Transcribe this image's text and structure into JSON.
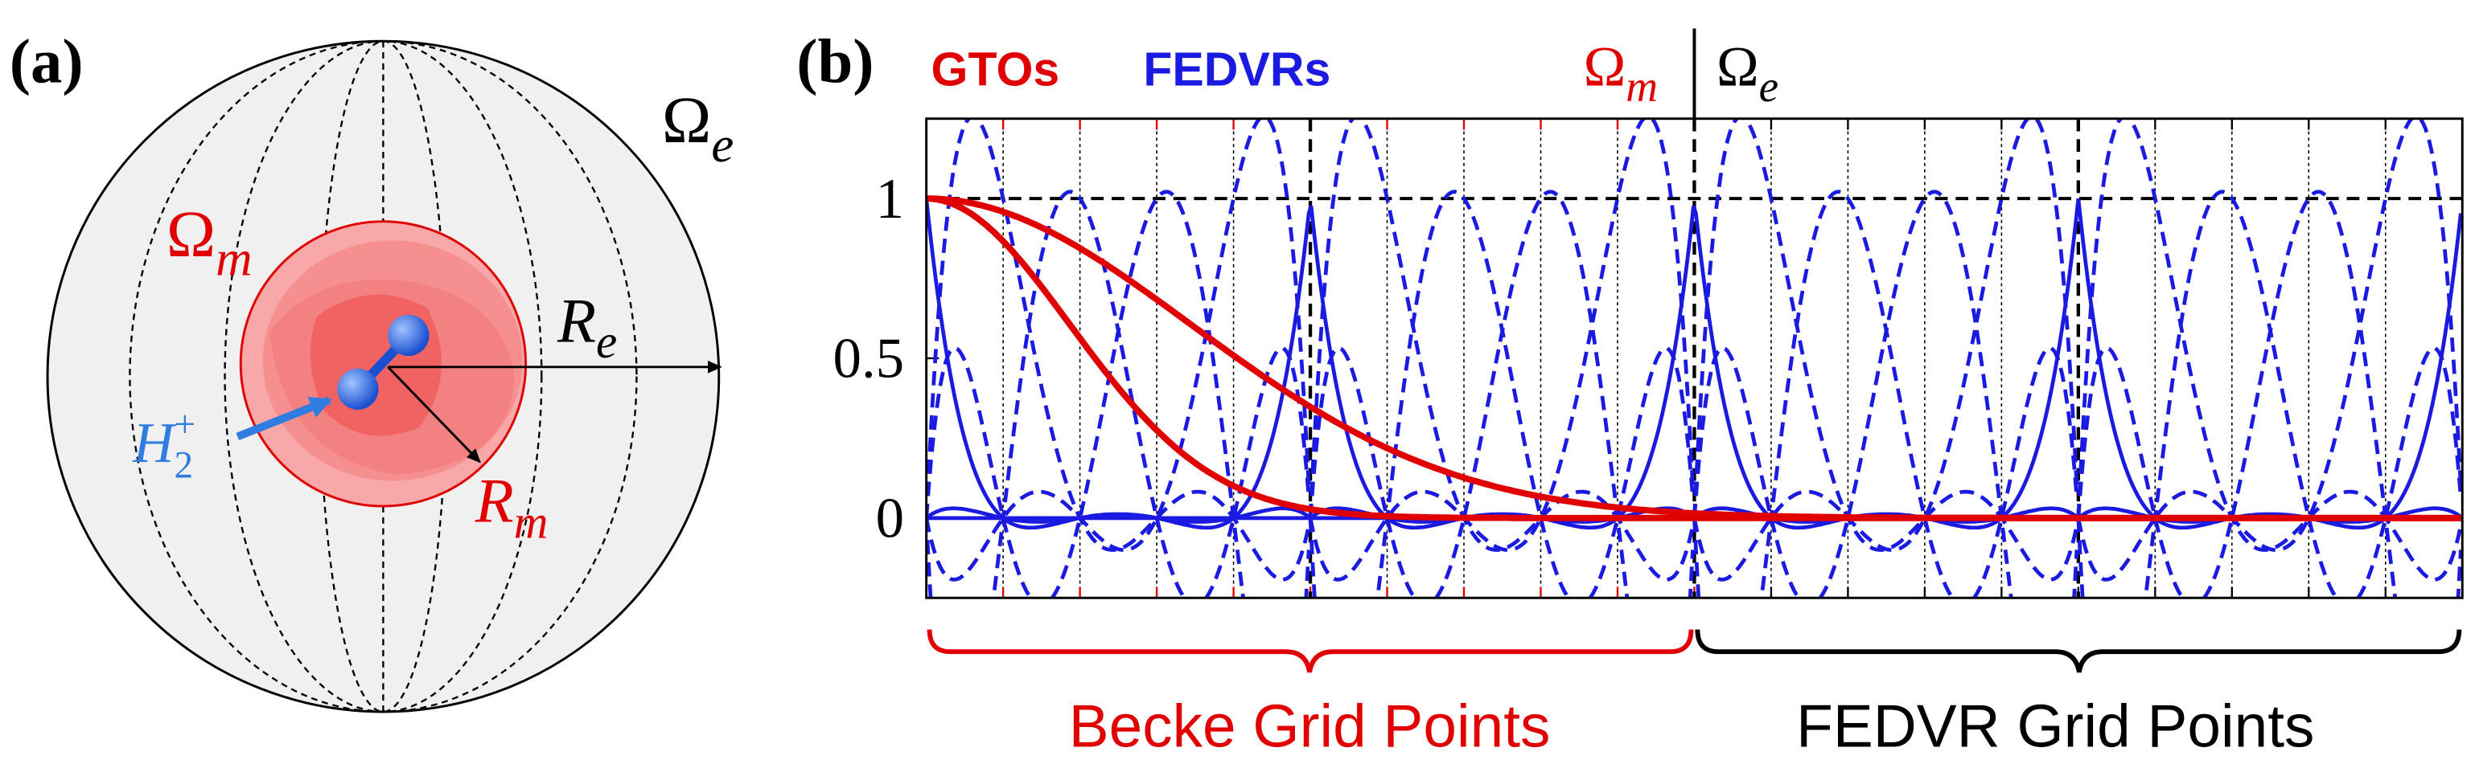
{
  "panel_a": {
    "label": "(a)",
    "omega_e": "Ω",
    "omega_e_sub": "e",
    "omega_m": "Ω",
    "omega_m_sub": "m",
    "r_e": "R",
    "r_e_sub": "e",
    "r_m": "R",
    "r_m_sub": "m",
    "molecule": "H",
    "molecule_sub": "2",
    "molecule_sup": "+"
  },
  "panel_b": {
    "label": "(b)",
    "legend": [
      "GTOs",
      "FEDVRs"
    ],
    "omega_m": "Ω",
    "omega_m_sub": "m",
    "omega_e": "Ω",
    "omega_e_sub": "e",
    "ylim": [
      -0.25,
      1.25
    ],
    "yticks": [
      0,
      0.5,
      1
    ],
    "regions": [
      "Becke Grid Points",
      "FEDVR Grid Points"
    ]
  }
}
